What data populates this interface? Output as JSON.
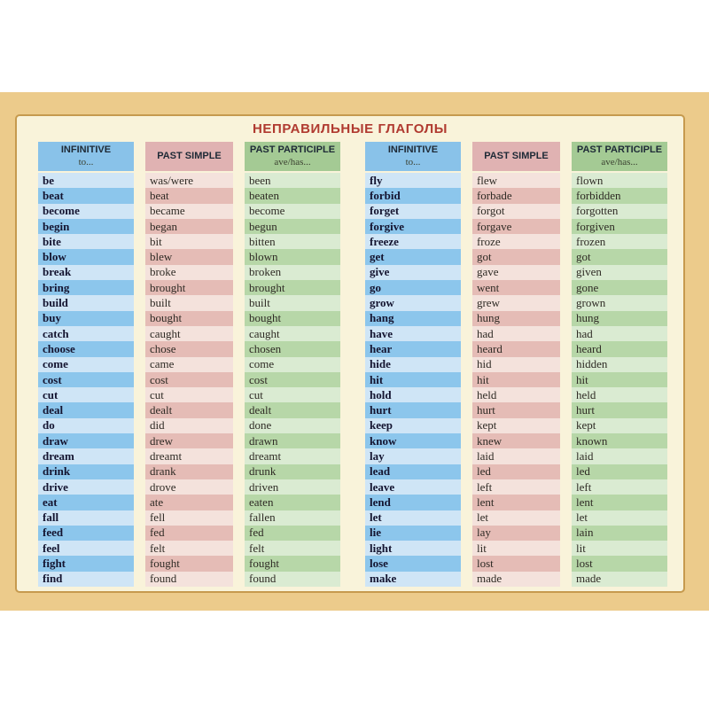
{
  "title": "НЕПРАВИЛЬНЫЕ ГЛАГОЛЫ",
  "colors": {
    "card_border_band": "#eccb8b",
    "panel_background": "#f9f3da",
    "panel_frame_line": "#c69a4e",
    "title_red": "#b03a30",
    "header_blue": "#89c2e9",
    "header_pink": "#e0b2b2",
    "header_green": "#a4ca94",
    "row_blue_dark": "#8cc6ec",
    "row_blue_light": "#cfe5f6",
    "row_pink_dark": "#e5bcb6",
    "row_pink_light": "#f4e2dc",
    "row_green_dark": "#b7d7a8",
    "row_green_light": "#daebd2"
  },
  "header": {
    "infinitive": "INFINITIVE",
    "infinitive_sub": "to...",
    "past_simple": "PAST SIMPLE",
    "past_participle": "PAST PARTICIPLE",
    "past_participle_sub": "ave/has..."
  },
  "left_table": {
    "rows": [
      {
        "inf": "be",
        "ps": "was/were",
        "pp": "been"
      },
      {
        "inf": "beat",
        "ps": "beat",
        "pp": "beaten"
      },
      {
        "inf": "become",
        "ps": "became",
        "pp": "become"
      },
      {
        "inf": "begin",
        "ps": "began",
        "pp": "begun"
      },
      {
        "inf": "bite",
        "ps": "bit",
        "pp": "bitten"
      },
      {
        "inf": "blow",
        "ps": "blew",
        "pp": "blown"
      },
      {
        "inf": "break",
        "ps": "broke",
        "pp": "broken"
      },
      {
        "inf": "bring",
        "ps": "brought",
        "pp": "brought"
      },
      {
        "inf": "build",
        "ps": "built",
        "pp": "built"
      },
      {
        "inf": "buy",
        "ps": "bought",
        "pp": "bought"
      },
      {
        "inf": "catch",
        "ps": "caught",
        "pp": "caught"
      },
      {
        "inf": "choose",
        "ps": "chose",
        "pp": "chosen"
      },
      {
        "inf": "come",
        "ps": "came",
        "pp": "come"
      },
      {
        "inf": "cost",
        "ps": "cost",
        "pp": "cost"
      },
      {
        "inf": "cut",
        "ps": "cut",
        "pp": "cut"
      },
      {
        "inf": "deal",
        "ps": "dealt",
        "pp": "dealt"
      },
      {
        "inf": "do",
        "ps": "did",
        "pp": "done"
      },
      {
        "inf": "draw",
        "ps": "drew",
        "pp": "drawn"
      },
      {
        "inf": "dream",
        "ps": "dreamt",
        "pp": "dreamt"
      },
      {
        "inf": "drink",
        "ps": "drank",
        "pp": "drunk"
      },
      {
        "inf": "drive",
        "ps": "drove",
        "pp": "driven"
      },
      {
        "inf": "eat",
        "ps": "ate",
        "pp": "eaten"
      },
      {
        "inf": "fall",
        "ps": "fell",
        "pp": "fallen"
      },
      {
        "inf": "feed",
        "ps": "fed",
        "pp": "fed"
      },
      {
        "inf": "feel",
        "ps": "felt",
        "pp": "felt"
      },
      {
        "inf": "fight",
        "ps": "fought",
        "pp": "fought"
      },
      {
        "inf": "find",
        "ps": "found",
        "pp": "found"
      }
    ]
  },
  "right_table": {
    "rows": [
      {
        "inf": "fly",
        "ps": "flew",
        "pp": "flown"
      },
      {
        "inf": "forbid",
        "ps": "forbade",
        "pp": "forbidden"
      },
      {
        "inf": "forget",
        "ps": "forgot",
        "pp": "forgotten"
      },
      {
        "inf": "forgive",
        "ps": "forgave",
        "pp": "forgiven"
      },
      {
        "inf": "freeze",
        "ps": "froze",
        "pp": "frozen"
      },
      {
        "inf": "get",
        "ps": "got",
        "pp": "got"
      },
      {
        "inf": "give",
        "ps": "gave",
        "pp": "given"
      },
      {
        "inf": "go",
        "ps": "went",
        "pp": "gone"
      },
      {
        "inf": "grow",
        "ps": "grew",
        "pp": "grown"
      },
      {
        "inf": "hang",
        "ps": "hung",
        "pp": "hung"
      },
      {
        "inf": "have",
        "ps": "had",
        "pp": "had"
      },
      {
        "inf": "hear",
        "ps": "heard",
        "pp": "heard"
      },
      {
        "inf": "hide",
        "ps": "hid",
        "pp": "hidden"
      },
      {
        "inf": "hit",
        "ps": "hit",
        "pp": "hit"
      },
      {
        "inf": "hold",
        "ps": "held",
        "pp": "held"
      },
      {
        "inf": "hurt",
        "ps": "hurt",
        "pp": "hurt"
      },
      {
        "inf": "keep",
        "ps": "kept",
        "pp": "kept"
      },
      {
        "inf": "know",
        "ps": "knew",
        "pp": "known"
      },
      {
        "inf": "lay",
        "ps": "laid",
        "pp": "laid"
      },
      {
        "inf": "lead",
        "ps": "led",
        "pp": "led"
      },
      {
        "inf": "leave",
        "ps": "left",
        "pp": "left"
      },
      {
        "inf": "lend",
        "ps": "lent",
        "pp": "lent"
      },
      {
        "inf": "let",
        "ps": "let",
        "pp": "let"
      },
      {
        "inf": "lie",
        "ps": "lay",
        "pp": "lain"
      },
      {
        "inf": "light",
        "ps": "lit",
        "pp": "lit"
      },
      {
        "inf": "lose",
        "ps": "lost",
        "pp": "lost"
      },
      {
        "inf": "make",
        "ps": "made",
        "pp": "made"
      }
    ]
  }
}
